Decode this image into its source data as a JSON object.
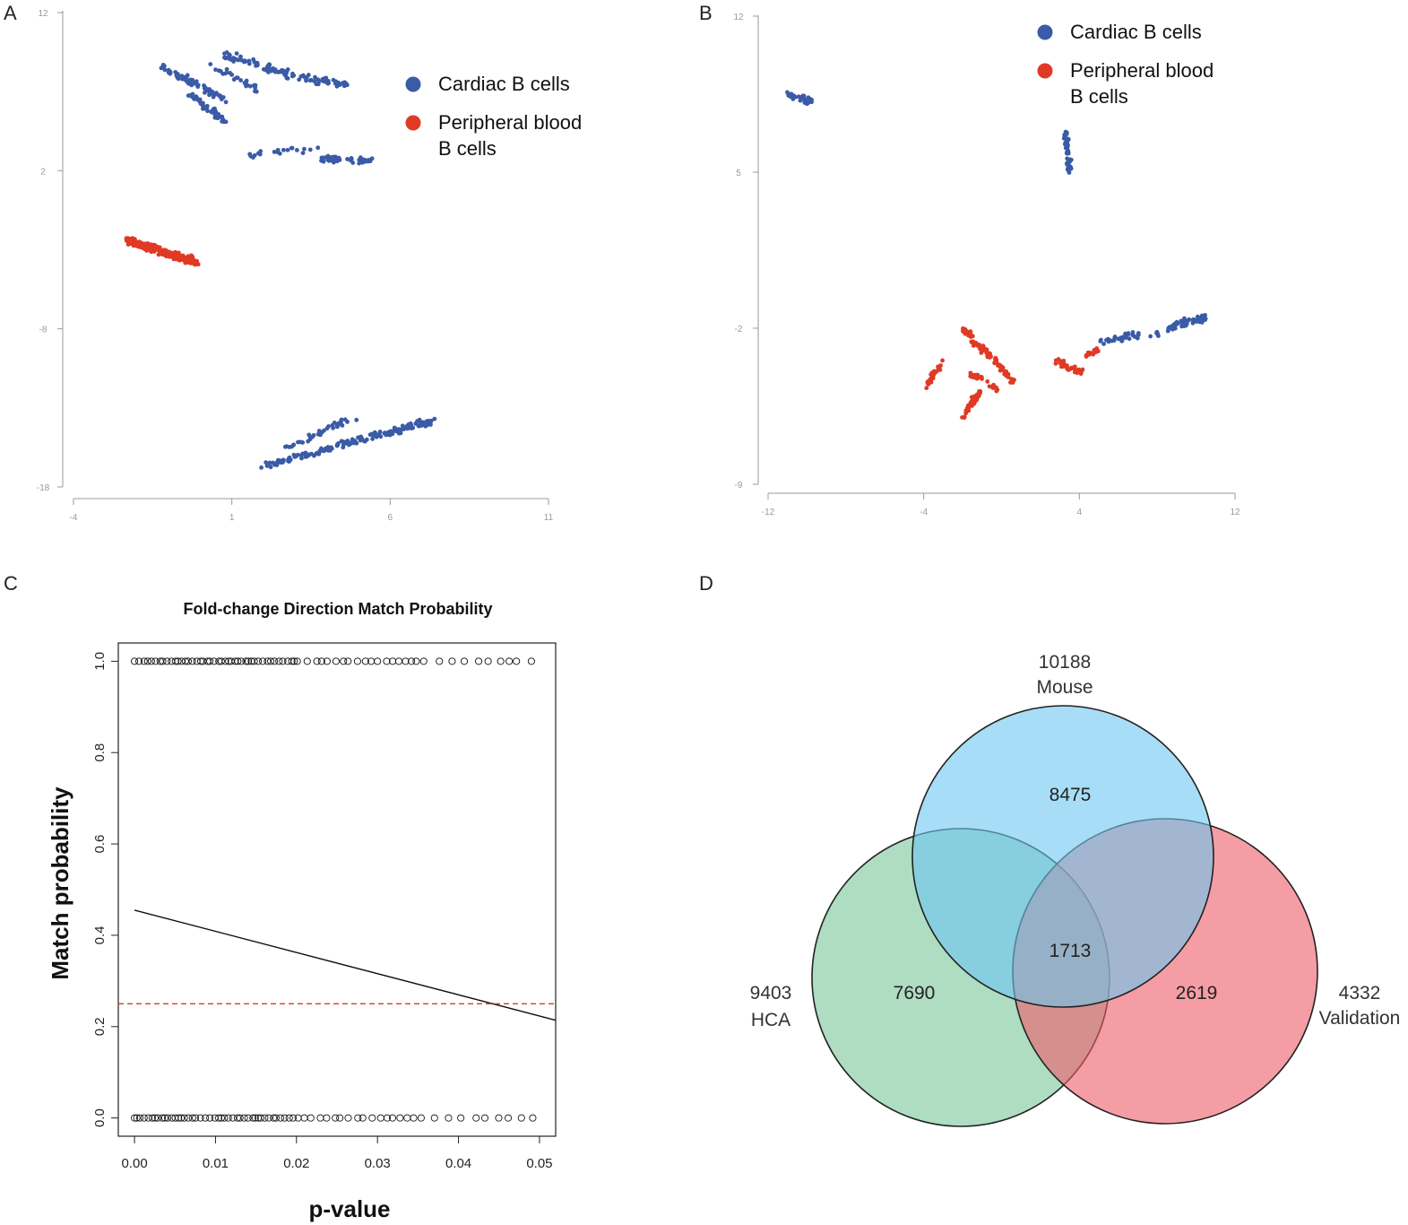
{
  "colors": {
    "cardiac": "#3a5ba6",
    "peripheral": "#e03a25",
    "mouse": "#6cc7f0",
    "hca": "#6cc18f",
    "validation": "#ee5c67"
  },
  "chart_data": [
    {
      "panel": "A",
      "type": "scatter",
      "title": "",
      "xlabel": "",
      "ylabel": "",
      "xlim": [
        -4,
        11
      ],
      "ylim": [
        -18,
        12
      ],
      "xticks": [
        "-4",
        "1",
        "6",
        "11"
      ],
      "yticks": [
        "12",
        "2",
        "-8",
        "-18"
      ],
      "legend": [
        "Cardiac B cells",
        "Peripheral blood\nB cells"
      ],
      "legend_lines": [
        [
          "Cardiac B cells"
        ],
        [
          "Peripheral blood",
          "B cells"
        ]
      ],
      "series": [
        {
          "name": "Cardiac B cells",
          "color_key": "cardiac",
          "clusters": [
            {
              "x": [
                -1.2,
                0.8
              ],
              "y": [
                8.5,
                6.5
              ],
              "n": 70
            },
            {
              "x": [
                0.8,
                2.8
              ],
              "y": [
                9.3,
                8.1
              ],
              "n": 60
            },
            {
              "x": [
                2.8,
                4.7
              ],
              "y": [
                8.0,
                7.4
              ],
              "n": 40
            },
            {
              "x": [
                -0.3,
                0.8
              ],
              "y": [
                6.8,
                5.1
              ],
              "n": 55
            },
            {
              "x": [
                1.2,
                3.8
              ],
              "y": [
                3.0,
                3.4
              ],
              "n": 20
            },
            {
              "x": [
                3.8,
                5.5
              ],
              "y": [
                2.8,
                2.6
              ],
              "n": 45
            },
            {
              "x": [
                0.2,
                1.8
              ],
              "y": [
                8.9,
                7.1
              ],
              "n": 25
            },
            {
              "x": [
                1.9,
                7.4
              ],
              "y": [
                -16.7,
                -13.8
              ],
              "n": 170
            },
            {
              "x": [
                2.6,
                4.9
              ],
              "y": [
                -15.6,
                -13.6
              ],
              "n": 40
            }
          ]
        },
        {
          "name": "Peripheral blood B cells",
          "color_key": "peripheral",
          "clusters": [
            {
              "x": [
                -2.3,
                -0.1
              ],
              "y": [
                -2.4,
                -3.8
              ],
              "n": 300
            }
          ]
        }
      ]
    },
    {
      "panel": "B",
      "type": "scatter",
      "title": "",
      "xlabel": "",
      "ylabel": "",
      "xlim": [
        -12,
        12
      ],
      "ylim": [
        -9,
        12
      ],
      "xticks": [
        "-12",
        "-4",
        "4",
        "12"
      ],
      "yticks": [
        "12",
        "5",
        "-2",
        "-9"
      ],
      "legend": [
        "Cardiac B cells",
        "Peripheral blood\nB cells"
      ],
      "legend_lines": [
        [
          "Cardiac B cells"
        ],
        [
          "Peripheral blood",
          "B cells"
        ]
      ],
      "series": [
        {
          "name": "Cardiac B cells",
          "color_key": "cardiac",
          "clusters": [
            {
              "x": [
                -11.0,
                -9.8
              ],
              "y": [
                8.5,
                8.2
              ],
              "n": 30
            },
            {
              "x": [
                3.3,
                3.5
              ],
              "y": [
                6.8,
                5.0
              ],
              "n": 60
            },
            {
              "x": [
                5.0,
                8.5
              ],
              "y": [
                -2.6,
                -2.1
              ],
              "n": 40
            },
            {
              "x": [
                8.5,
                10.5
              ],
              "y": [
                -2.0,
                -1.5
              ],
              "n": 60
            }
          ]
        },
        {
          "name": "Peripheral blood B cells",
          "color_key": "peripheral",
          "clusters": [
            {
              "x": [
                -3.9,
                -3.0
              ],
              "y": [
                -4.6,
                -3.4
              ],
              "n": 30
            },
            {
              "x": [
                -2.0,
                -1.1
              ],
              "y": [
                -6.0,
                -4.8
              ],
              "n": 50
            },
            {
              "x": [
                -2.0,
                -0.6
              ],
              "y": [
                -2.0,
                -3.3
              ],
              "n": 50
            },
            {
              "x": [
                -0.8,
                0.6
              ],
              "y": [
                -3.0,
                -4.4
              ],
              "n": 40
            },
            {
              "x": [
                -1.6,
                -0.2
              ],
              "y": [
                -4.0,
                -4.7
              ],
              "n": 30
            },
            {
              "x": [
                2.8,
                4.2
              ],
              "y": [
                -3.5,
                -4.0
              ],
              "n": 40
            },
            {
              "x": [
                4.3,
                5.0
              ],
              "y": [
                -3.2,
                -2.9
              ],
              "n": 12
            }
          ]
        }
      ]
    },
    {
      "panel": "C",
      "type": "scatter",
      "title": "Fold-change Direction Match Probability",
      "xlabel": "p-value",
      "ylabel": "Match probability",
      "xlim": [
        -0.002,
        0.052
      ],
      "ylim": [
        -0.04,
        1.04
      ],
      "xticks": [
        0.0,
        0.01,
        0.02,
        0.03,
        0.04,
        0.05
      ],
      "xtick_labels": [
        "0.00",
        "0.01",
        "0.02",
        "0.03",
        "0.04",
        "0.05"
      ],
      "yticks": [
        0.0,
        0.2,
        0.4,
        0.6,
        0.8,
        1.0
      ],
      "ytick_labels": [
        "0.0",
        "0.2",
        "0.4",
        "0.6",
        "0.8",
        "1.0"
      ],
      "points_y": [
        0,
        1
      ],
      "points_x_range": [
        0.0,
        0.05
      ],
      "fit_line": {
        "x": [
          0.0,
          0.052
        ],
        "y": [
          0.455,
          0.214
        ]
      },
      "threshold_line": {
        "y": 0.25,
        "color": "#e03a25",
        "style": "dashed"
      }
    },
    {
      "panel": "D",
      "type": "venn",
      "sets": [
        {
          "name": "Mouse",
          "total": "10188",
          "color_key": "mouse"
        },
        {
          "name": "HCA",
          "total": "9403",
          "color_key": "hca"
        },
        {
          "name": "Validation",
          "total": "4332",
          "color_key": "validation"
        }
      ],
      "region_labels": {
        "mouse_only": "8475",
        "hca_only": "7690",
        "validation_only": "2619",
        "all_three": "1713"
      }
    }
  ],
  "panel_labels": {
    "a": "A",
    "b": "B",
    "c": "C",
    "d": "D"
  }
}
